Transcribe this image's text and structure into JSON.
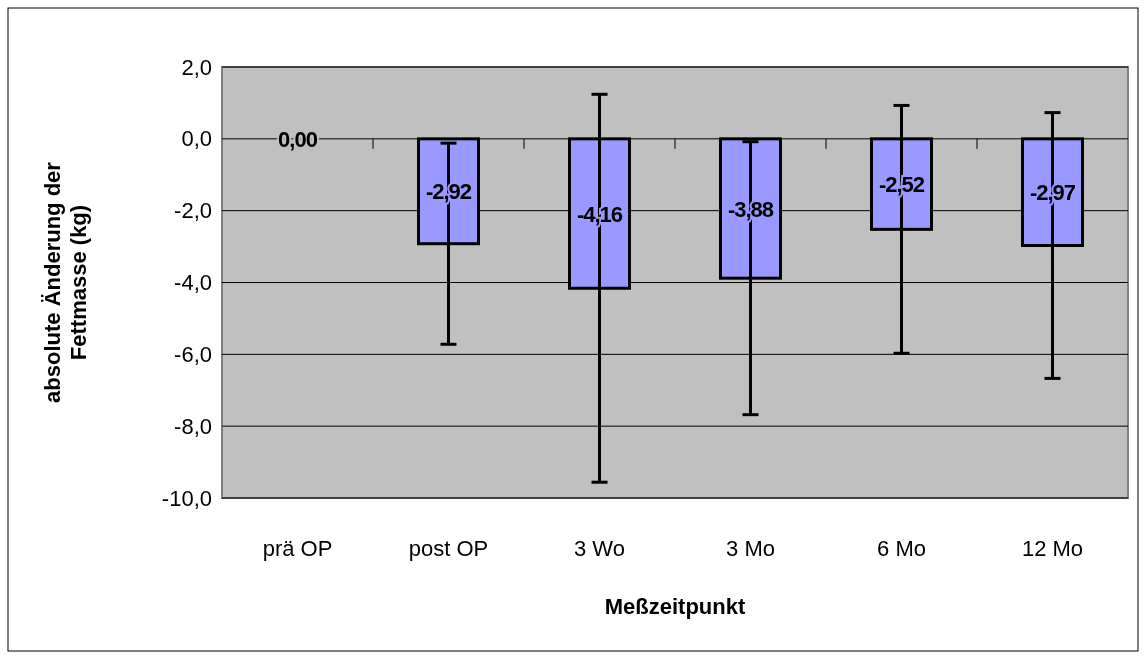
{
  "chart_data": {
    "type": "bar",
    "xlabel": "Meßzeitpunkt",
    "ylabel": "absolute Änderung der Fettmasse (kg)",
    "categories": [
      "prä OP",
      "post OP",
      "3 Wo",
      "3 Mo",
      "6 Mo",
      "12 Mo"
    ],
    "values": [
      0,
      -2.92,
      -4.16,
      -3.88,
      -2.52,
      -2.97
    ],
    "errors": [
      null,
      2.8,
      5.4,
      3.8,
      3.45,
      3.7
    ],
    "value_labels": [
      "0,00",
      "-2,92",
      "-4,16",
      "-3,88",
      "-2,52",
      "-2,97"
    ],
    "color": "#9999ff",
    "ylim": [
      -10,
      2
    ],
    "yticks": [
      {
        "value": -10,
        "label": "-10,0"
      },
      {
        "value": -8,
        "label": "-8,0"
      },
      {
        "value": -6,
        "label": "-6,0"
      },
      {
        "value": -4,
        "label": "-4,0"
      },
      {
        "value": -2,
        "label": "-2,0"
      },
      {
        "value": 0,
        "label": "0,0"
      },
      {
        "value": 2,
        "label": "2,0"
      }
    ],
    "grid": "y"
  }
}
